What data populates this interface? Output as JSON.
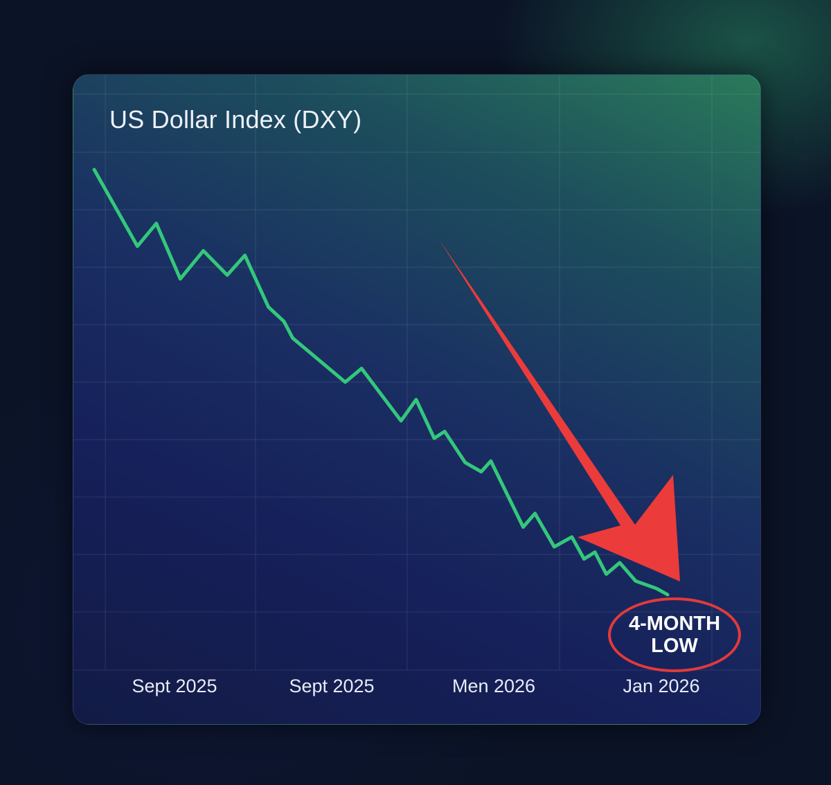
{
  "colors": {
    "line": "#34c77b",
    "arrow": "#ec3b3b",
    "callout_ring": "#e23a3a",
    "grid": "rgba(255,255,255,0.07)"
  },
  "chart_data": {
    "type": "line",
    "title": "US Dollar Index (DXY)",
    "xlabel": "",
    "ylabel": "",
    "grid": true,
    "x_tick_labels": [
      "Sept 2025",
      "Sept 2025",
      "Men 2026",
      "Jan 2026"
    ],
    "x": [
      0,
      1.03,
      1.48,
      2.05,
      2.6,
      3.17,
      3.59,
      4.15,
      4.52,
      4.73,
      5.98,
      6.37,
      7.31,
      7.67,
      8.1,
      8.35,
      8.84,
      9.22,
      9.45,
      10.22,
      10.5,
      10.96,
      11.38,
      11.67,
      11.93,
      12.2,
      12.52,
      12.9,
      13.4,
      13.66
    ],
    "values": [
      100,
      89.9,
      92.9,
      85.6,
      89.3,
      86.1,
      88.7,
      81.9,
      80.0,
      77.8,
      72.0,
      73.8,
      66.9,
      69.7,
      64.6,
      65.5,
      61.4,
      60.2,
      61.6,
      52.9,
      54.7,
      50.3,
      51.6,
      48.7,
      49.6,
      46.7,
      48.2,
      45.8,
      44.8,
      44.0
    ],
    "annotations": {
      "callout_line1": "4-MONTH",
      "callout_line2": "LOW"
    }
  }
}
